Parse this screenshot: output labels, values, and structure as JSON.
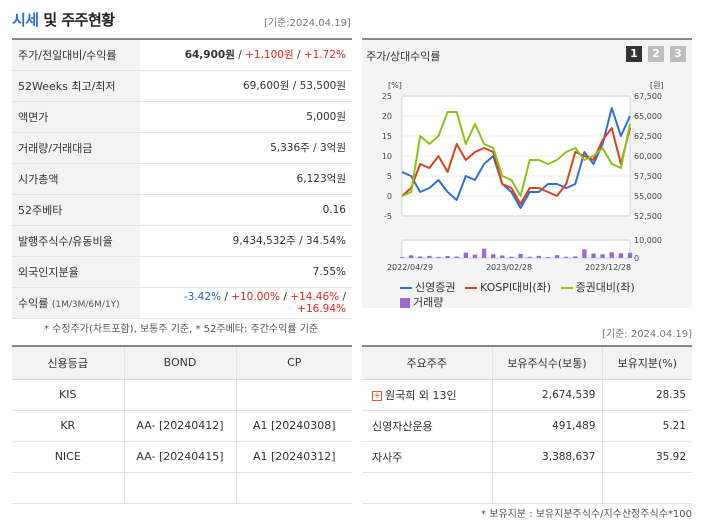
{
  "header": {
    "title_part1": "시세",
    "title_part2": "및 주주현황",
    "asof": "[기준:2024.04.19]"
  },
  "price_table": {
    "rows": [
      {
        "label": "주가/전일대비/수익률",
        "price": "64,900원",
        "change": "+1,100원",
        "pct": "+1.72%"
      },
      {
        "label": "52Weeks 최고/최저",
        "value": "69,600원 / 53,500원"
      },
      {
        "label": "액면가",
        "value": "5,000원"
      },
      {
        "label": "거래량/거래대금",
        "value": "5,336주 / 3억원"
      },
      {
        "label": "시가총액",
        "value": "6,123억원"
      },
      {
        "label": "52주베타",
        "value": "0.16"
      },
      {
        "label": "발행주식수/유동비율",
        "value": "9,434,532주 / 34.54%"
      },
      {
        "label": "외국인지분율",
        "value": "7.55%"
      },
      {
        "label": "수익률",
        "label_sub": "(1M/3M/6M/1Y)",
        "r1": "-3.42%",
        "r2": "+10.00%",
        "r3": "+14.46%",
        "r4": "+16.94%"
      }
    ],
    "footnote": "* 수정주가(차트포함), 보통주 기준, * 52주베타: 주간수익률 기준"
  },
  "chart_panel": {
    "title": "주가/상대수익률",
    "tabs": [
      "1",
      "2",
      "3"
    ],
    "active_tab": "1",
    "legend": [
      {
        "name": "신영증권",
        "color": "#2f6fd6",
        "kind": "line"
      },
      {
        "name": "KOSPI대비(좌)",
        "color": "#d9421b",
        "kind": "line"
      },
      {
        "name": "증권대비(좌)",
        "color": "#8cc21a",
        "kind": "line"
      },
      {
        "name": "거래량",
        "color": "#9c6ad8",
        "kind": "bar"
      }
    ]
  },
  "chart_data": {
    "type": "line",
    "left_unit": "[%]",
    "right_unit": "[원]",
    "left_ticks": [
      "25",
      "20",
      "15",
      "10",
      "5",
      "0",
      "-5"
    ],
    "right_ticks": [
      "67,500",
      "65,000",
      "62,500",
      "60,000",
      "57,500",
      "55,000",
      "52,500"
    ],
    "volume_ticks": [
      "10,000",
      "0"
    ],
    "x_labels": [
      "2022/04/29",
      "2023/02/28",
      "2023/12/28"
    ],
    "ylim_left": [
      -5,
      25
    ],
    "ylim_right": [
      52500,
      67500
    ],
    "volume_max": 10000,
    "series": [
      {
        "name": "신영증권",
        "color": "#2f6fd6",
        "values": [
          6,
          5,
          1,
          2,
          4,
          1,
          -1,
          5,
          4,
          8,
          10,
          3,
          1,
          -3,
          1,
          1,
          3,
          3,
          2,
          3,
          11,
          8,
          13,
          22,
          15,
          20
        ]
      },
      {
        "name": "KOSPI대비(좌)",
        "color": "#d9421b",
        "values": [
          0,
          2,
          8,
          7,
          10,
          6,
          13,
          9,
          11,
          12,
          11,
          3,
          2,
          -2,
          2,
          2,
          1,
          0,
          3,
          11,
          10,
          9,
          14,
          17,
          8,
          17
        ]
      },
      {
        "name": "증권대비(좌)",
        "color": "#8cc21a",
        "values": [
          0,
          1,
          15,
          13,
          15,
          21,
          21,
          13,
          18,
          13,
          12,
          5,
          4,
          0,
          9,
          9,
          8,
          9,
          11,
          12,
          9,
          10,
          12,
          8,
          7,
          18
        ]
      }
    ],
    "volume": [
      500,
      1500,
      900,
      1200,
      600,
      1100,
      800,
      3000,
      1900,
      5200,
      2100,
      1400,
      700,
      2300,
      700,
      1200,
      500,
      1600,
      700,
      900,
      4800,
      2500,
      2100,
      3200,
      2600,
      2900
    ]
  },
  "credit_table": {
    "headers": [
      "신용등급",
      "BOND",
      "CP"
    ],
    "rows": [
      {
        "agency": "KIS",
        "bond": "",
        "cp": ""
      },
      {
        "agency": "KR",
        "bond": "AA- [20240412]",
        "cp": "A1 [20240308]"
      },
      {
        "agency": "NICE",
        "bond": "AA- [20240415]",
        "cp": "A1 [20240312]"
      },
      {
        "agency": "",
        "bond": "",
        "cp": ""
      }
    ]
  },
  "shareholders": {
    "asof": "[기준: 2024.04.19]",
    "headers": [
      "주요주주",
      "보유주식수(보통)",
      "보유지분(%)"
    ],
    "rows": [
      {
        "name": "원국희 외 13인",
        "shares": "2,674,539",
        "pct": "28.35",
        "expandable": true
      },
      {
        "name": "신영자산운용",
        "shares": "491,489",
        "pct": "5.21",
        "expandable": false
      },
      {
        "name": "자사주",
        "shares": "3,388,637",
        "pct": "35.92",
        "expandable": false
      },
      {
        "name": "",
        "shares": "",
        "pct": "",
        "expandable": false
      }
    ],
    "footnote": "* 보유지분 : 보유지분주식수/지수산정주식수*100"
  }
}
